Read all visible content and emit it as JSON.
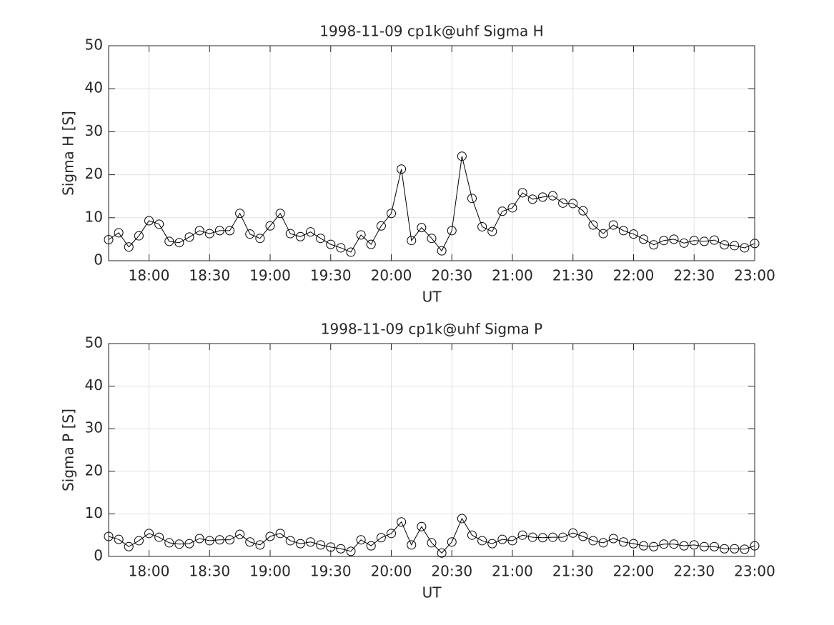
{
  "chart_data": [
    {
      "type": "line",
      "title": "1998-11-09  cp1k@uhf Sigma H",
      "xlabel": "UT",
      "ylabel": "Sigma H [S]",
      "x": [
        "17:40",
        "17:45",
        "17:50",
        "17:55",
        "18:00",
        "18:05",
        "18:10",
        "18:15",
        "18:20",
        "18:25",
        "18:30",
        "18:35",
        "18:40",
        "18:45",
        "18:50",
        "18:55",
        "19:00",
        "19:05",
        "19:10",
        "19:15",
        "19:20",
        "19:25",
        "19:30",
        "19:35",
        "19:40",
        "19:45",
        "19:50",
        "19:55",
        "20:00",
        "20:05",
        "20:10",
        "20:15",
        "20:20",
        "20:25",
        "20:30",
        "20:35",
        "20:40",
        "20:45",
        "20:50",
        "20:55",
        "21:00",
        "21:05",
        "21:10",
        "21:15",
        "21:20",
        "21:25",
        "21:30",
        "21:35",
        "21:40",
        "21:45",
        "21:50",
        "21:55",
        "22:00",
        "22:05",
        "22:10",
        "22:15",
        "22:20",
        "22:25",
        "22:30",
        "22:35",
        "22:40",
        "22:45",
        "22:50",
        "22:55",
        "23:00"
      ],
      "series": [
        {
          "color": "#000000",
          "values": [
            4.9,
            6.5,
            3.2,
            5.8,
            9.3,
            8.5,
            4.5,
            4.2,
            5.5,
            7.0,
            6.3,
            7.0,
            7.0,
            11.0,
            6.2,
            5.2,
            8.1,
            11.0,
            6.3,
            5.6,
            6.7,
            5.2,
            3.8,
            3.0,
            2.0,
            6.0,
            3.8,
            8.1,
            11.0,
            21.3,
            4.7,
            7.7,
            5.2,
            2.3,
            7.0,
            24.3,
            14.5,
            7.9,
            6.8,
            11.5,
            12.3,
            15.8,
            14.3,
            14.8,
            15.1,
            13.4,
            13.3,
            11.6,
            8.3,
            6.3,
            8.3,
            7.0,
            6.2,
            5.0,
            3.7,
            4.7,
            5.0,
            4.1,
            4.7,
            4.5,
            4.8,
            3.7,
            3.5,
            3.0,
            4.0
          ]
        }
      ],
      "xlim": [
        "17:40",
        "23:00"
      ],
      "xticks": [
        "18:00",
        "18:30",
        "19:00",
        "19:30",
        "20:00",
        "20:30",
        "21:00",
        "21:30",
        "22:00",
        "22:30",
        "23:00"
      ],
      "ylim": [
        0,
        50
      ],
      "yticks": [
        0,
        10,
        20,
        30,
        40,
        50
      ],
      "grid": true
    },
    {
      "type": "line",
      "title": "1998-11-09  cp1k@uhf Sigma P",
      "xlabel": "UT",
      "ylabel": "Sigma P [S]",
      "x": [
        "17:40",
        "17:45",
        "17:50",
        "17:55",
        "18:00",
        "18:05",
        "18:10",
        "18:15",
        "18:20",
        "18:25",
        "18:30",
        "18:35",
        "18:40",
        "18:45",
        "18:50",
        "18:55",
        "19:00",
        "19:05",
        "19:10",
        "19:15",
        "19:20",
        "19:25",
        "19:30",
        "19:35",
        "19:40",
        "19:45",
        "19:50",
        "19:55",
        "20:00",
        "20:05",
        "20:10",
        "20:15",
        "20:20",
        "20:25",
        "20:30",
        "20:35",
        "20:40",
        "20:45",
        "20:50",
        "20:55",
        "21:00",
        "21:05",
        "21:10",
        "21:15",
        "21:20",
        "21:25",
        "21:30",
        "21:35",
        "21:40",
        "21:45",
        "21:50",
        "21:55",
        "22:00",
        "22:05",
        "22:10",
        "22:15",
        "22:20",
        "22:25",
        "22:30",
        "22:35",
        "22:40",
        "22:45",
        "22:50",
        "22:55",
        "23:00"
      ],
      "series": [
        {
          "color": "#000000",
          "values": [
            4.7,
            4.0,
            2.3,
            3.7,
            5.4,
            4.5,
            3.2,
            2.9,
            3.0,
            4.2,
            3.7,
            3.9,
            3.9,
            5.2,
            3.4,
            2.7,
            4.7,
            5.4,
            3.7,
            3.0,
            3.4,
            2.7,
            2.2,
            1.8,
            1.2,
            3.9,
            2.5,
            4.4,
            5.4,
            8.1,
            2.7,
            7.0,
            3.2,
            0.8,
            3.4,
            8.9,
            5.0,
            3.7,
            3.0,
            4.0,
            3.7,
            5.0,
            4.5,
            4.4,
            4.5,
            4.5,
            5.5,
            4.7,
            3.7,
            3.2,
            4.2,
            3.4,
            3.0,
            2.5,
            2.3,
            2.9,
            2.9,
            2.5,
            2.7,
            2.3,
            2.3,
            1.8,
            1.8,
            1.7,
            2.5
          ]
        }
      ],
      "xlim": [
        "17:40",
        "23:00"
      ],
      "xticks": [
        "18:00",
        "18:30",
        "19:00",
        "19:30",
        "20:00",
        "20:30",
        "21:00",
        "21:30",
        "22:00",
        "22:30",
        "23:00"
      ],
      "ylim": [
        0,
        50
      ],
      "yticks": [
        0,
        10,
        20,
        30,
        40,
        50
      ],
      "grid": true
    }
  ]
}
